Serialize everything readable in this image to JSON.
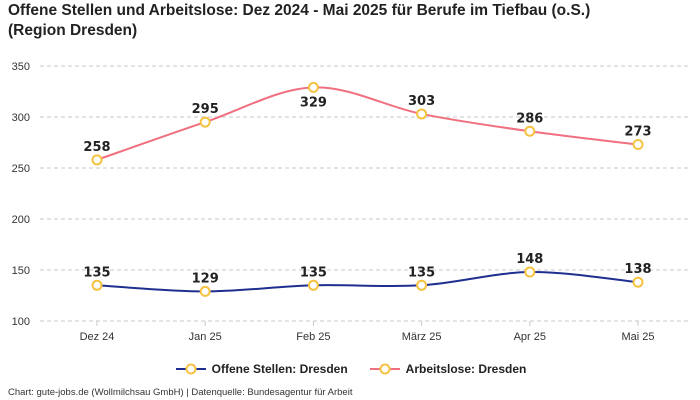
{
  "chart_data": {
    "type": "line",
    "title_line1": "Offene Stellen und Arbeitslose: Dez 2024 - Mai 2025 für Berufe im Tiefbau (o.S.)",
    "title_line2": "(Region Dresden)",
    "categories": [
      "Dez 24",
      "Jan 25",
      "Feb 25",
      "März 25",
      "Apr 25",
      "Mai 25"
    ],
    "series": [
      {
        "name": "Offene Stellen: Dresden",
        "color": "#1f2f8f",
        "values": [
          135,
          129,
          135,
          135,
          148,
          138
        ]
      },
      {
        "name": "Arbeitslose: Dresden",
        "color": "#f07080",
        "values": [
          258,
          295,
          329,
          303,
          286,
          273
        ]
      }
    ],
    "ylim": [
      100,
      350
    ],
    "yticks": [
      100,
      150,
      200,
      250,
      300,
      350
    ],
    "grid": true,
    "legend_position": "bottom",
    "marker_color": "#f5c242"
  },
  "footer": {
    "source": "Chart: gute-jobs.de (Wollmilchsau GmbH) | Datenquelle: Bundesagentur für Arbeit"
  }
}
